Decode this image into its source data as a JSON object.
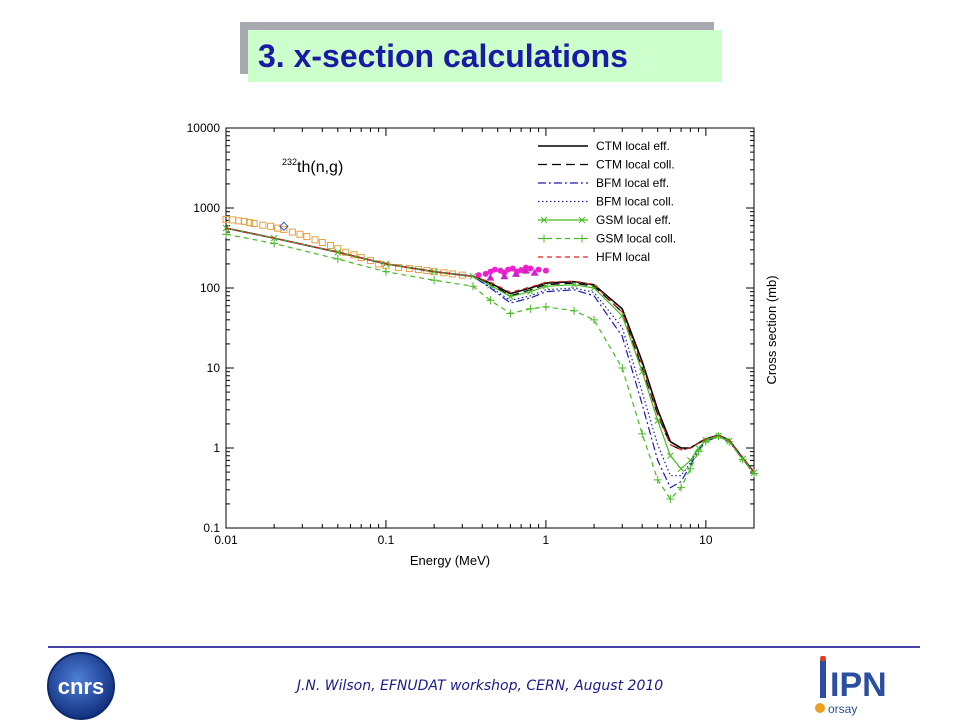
{
  "slide": {
    "title": "3. x-section calculations",
    "footer": "J.N. Wilson,  EFNUDAT workshop, CERN, August 2010",
    "logo_left_text": "cnrs",
    "logo_right_text": "IPN",
    "logo_right_sub": "orsay"
  },
  "colors": {
    "title_bg": "#ccffcc",
    "title_text": "#1a1aa6",
    "ctm": "#000000",
    "bfm": "#1c1cb4",
    "gsm": "#44bb22",
    "hfm": "#dd2222",
    "exp_orange": "#e8a040",
    "exp_magenta": "#ee22cc"
  },
  "chart_data": {
    "type": "line",
    "annotation_sup": "232",
    "annotation": "th(n,g)",
    "xlabel": "Energy (MeV)",
    "ylabel": "Cross section (mb)",
    "xscale": "log",
    "yscale": "log",
    "xlim": [
      0.01,
      20
    ],
    "ylim": [
      0.1,
      10000
    ],
    "xticks": [
      "0.01",
      "0.1",
      "1",
      "10"
    ],
    "yticks": [
      "10000",
      "1000",
      "100",
      "10",
      "1",
      "0.1"
    ],
    "legend_position": "top-right",
    "series": [
      {
        "name": "CTM local eff.",
        "style": "solid",
        "color": "#000000",
        "x": [
          0.01,
          0.02,
          0.05,
          0.1,
          0.2,
          0.35,
          0.45,
          0.6,
          0.8,
          1,
          1.5,
          2,
          3,
          4,
          5,
          6,
          7,
          8,
          9,
          10,
          12,
          14,
          17,
          20
        ],
        "y": [
          560,
          420,
          280,
          200,
          160,
          140,
          115,
          85,
          100,
          115,
          120,
          110,
          55,
          12,
          3,
          1.2,
          1.0,
          1.0,
          1.15,
          1.3,
          1.45,
          1.25,
          0.75,
          0.5
        ]
      },
      {
        "name": "CTM local coll.",
        "style": "longdash",
        "color": "#000000",
        "x": [
          0.01,
          0.02,
          0.05,
          0.1,
          0.2,
          0.35,
          0.45,
          0.6,
          0.8,
          1,
          1.5,
          2,
          3,
          4,
          5,
          6,
          7,
          8,
          9,
          10,
          12,
          14,
          17,
          20
        ],
        "y": [
          560,
          420,
          280,
          200,
          160,
          140,
          112,
          80,
          95,
          110,
          115,
          105,
          50,
          10,
          2.6,
          1.1,
          0.95,
          1.0,
          1.15,
          1.3,
          1.45,
          1.25,
          0.75,
          0.5
        ]
      },
      {
        "name": "BFM local eff.",
        "style": "dashdot",
        "color": "#1c1cb4",
        "x": [
          0.01,
          0.02,
          0.05,
          0.1,
          0.2,
          0.35,
          0.45,
          0.6,
          0.8,
          1,
          1.5,
          2,
          3,
          4,
          5,
          6,
          7,
          8,
          9,
          10,
          12,
          14,
          17,
          20
        ],
        "y": [
          560,
          420,
          280,
          200,
          160,
          140,
          100,
          65,
          75,
          90,
          95,
          80,
          25,
          3.5,
          0.7,
          0.32,
          0.38,
          0.6,
          0.95,
          1.2,
          1.4,
          1.2,
          0.72,
          0.48
        ]
      },
      {
        "name": "BFM local coll.",
        "style": "dotted",
        "color": "#1c1cb4",
        "x": [
          0.01,
          0.02,
          0.05,
          0.1,
          0.2,
          0.35,
          0.45,
          0.6,
          0.8,
          1,
          1.5,
          2,
          3,
          4,
          5,
          6,
          7,
          8,
          9,
          10,
          12,
          14,
          17,
          20
        ],
        "y": [
          560,
          420,
          280,
          200,
          160,
          140,
          102,
          70,
          80,
          95,
          100,
          88,
          32,
          5,
          1.1,
          0.45,
          0.45,
          0.65,
          1.0,
          1.25,
          1.42,
          1.22,
          0.73,
          0.49
        ]
      },
      {
        "name": "GSM local eff.",
        "style": "solid-x",
        "color": "#44bb22",
        "x": [
          0.01,
          0.02,
          0.05,
          0.1,
          0.2,
          0.35,
          0.45,
          0.6,
          0.8,
          1,
          1.5,
          2,
          3,
          4,
          5,
          6,
          7,
          8,
          9,
          10,
          12,
          14,
          17,
          20
        ],
        "y": [
          560,
          420,
          280,
          200,
          160,
          140,
          108,
          78,
          90,
          105,
          110,
          100,
          45,
          9,
          2.2,
          0.8,
          0.55,
          0.7,
          1.0,
          1.25,
          1.42,
          1.22,
          0.73,
          0.49
        ]
      },
      {
        "name": "GSM local coll.",
        "style": "dash-plus",
        "color": "#44bb22",
        "x": [
          0.01,
          0.02,
          0.05,
          0.1,
          0.2,
          0.35,
          0.45,
          0.6,
          0.8,
          1,
          1.5,
          2,
          3,
          4,
          5,
          6,
          7,
          8,
          9,
          10,
          12,
          14,
          17,
          20
        ],
        "y": [
          470,
          360,
          230,
          160,
          125,
          105,
          70,
          48,
          55,
          58,
          52,
          40,
          10,
          1.5,
          0.4,
          0.23,
          0.32,
          0.55,
          0.9,
          1.2,
          1.4,
          1.2,
          0.72,
          0.48
        ]
      },
      {
        "name": "HFM local",
        "style": "dashed",
        "color": "#dd2222",
        "x": [
          0.01,
          0.02,
          0.05,
          0.1,
          0.2,
          0.35,
          0.45,
          0.6,
          0.8,
          1,
          1.5,
          2,
          3,
          4,
          5,
          6,
          7,
          8,
          9,
          10,
          12,
          14,
          17,
          20
        ],
        "y": [
          560,
          420,
          280,
          200,
          160,
          140,
          118,
          88,
          103,
          118,
          122,
          110,
          50,
          11,
          2.7,
          1.1,
          0.95,
          1.0,
          1.15,
          1.3,
          1.45,
          1.25,
          0.75,
          0.5
        ]
      }
    ],
    "experimental": [
      {
        "color": "#e8a040",
        "marker": "square-open",
        "x": [
          0.01,
          0.011,
          0.012,
          0.013,
          0.014,
          0.015,
          0.017,
          0.019,
          0.021,
          0.023,
          0.026,
          0.029,
          0.032,
          0.036,
          0.04,
          0.045,
          0.05,
          0.056,
          0.063,
          0.07,
          0.08,
          0.09,
          0.1,
          0.12,
          0.14,
          0.16,
          0.18,
          0.2,
          0.23,
          0.26,
          0.3
        ],
        "y": [
          720,
          710,
          690,
          680,
          660,
          640,
          610,
          590,
          560,
          540,
          500,
          470,
          440,
          400,
          370,
          340,
          310,
          280,
          260,
          240,
          220,
          200,
          190,
          180,
          175,
          170,
          165,
          160,
          155,
          150,
          145
        ]
      },
      {
        "color": "#ee22cc",
        "marker": "circle-filled",
        "x": [
          0.38,
          0.42,
          0.45,
          0.48,
          0.52,
          0.55,
          0.58,
          0.62,
          0.66,
          0.7,
          0.75,
          0.8,
          0.9,
          1.0
        ],
        "y": [
          145,
          150,
          160,
          170,
          165,
          155,
          170,
          175,
          160,
          168,
          180,
          175,
          170,
          165
        ]
      },
      {
        "color": "#cc22cc",
        "marker": "triangle-filled",
        "x": [
          0.45,
          0.55,
          0.65,
          0.75,
          0.85
        ],
        "y": [
          135,
          140,
          150,
          165,
          155
        ]
      },
      {
        "color": "#2255cc",
        "marker": "diamond-open",
        "x": [
          0.023
        ],
        "y": [
          590
        ]
      }
    ]
  }
}
